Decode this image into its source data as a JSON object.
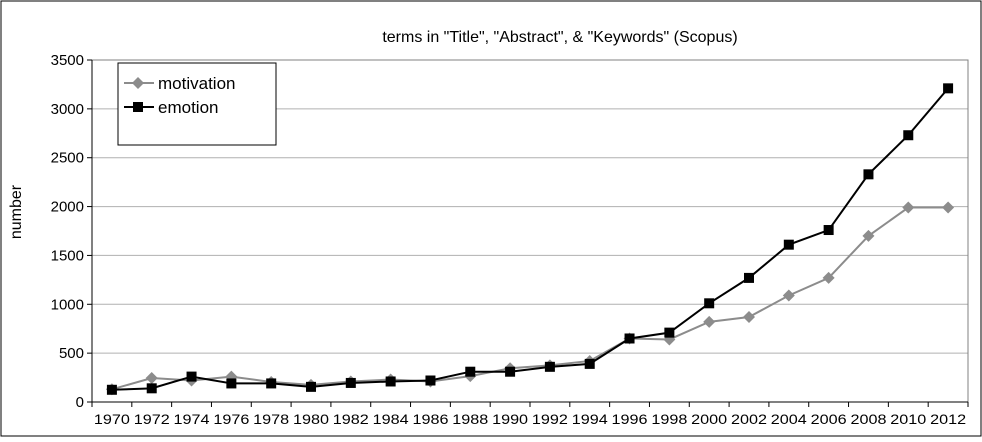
{
  "chart_data": {
    "type": "line",
    "title": "terms in \"Title\", \"Abstract\", & \"Keywords\" (Scopus)",
    "xlabel": "",
    "ylabel": "number",
    "ylim": [
      0,
      3500
    ],
    "yticks": [
      0,
      500,
      1000,
      1500,
      2000,
      2500,
      3000,
      3500
    ],
    "grid": true,
    "legend_position": "top-left",
    "categories": [
      "1970",
      "1972",
      "1974",
      "1976",
      "1978",
      "1980",
      "1982",
      "1984",
      "1986",
      "1988",
      "1990",
      "1992",
      "1994",
      "1996",
      "1998",
      "2000",
      "2002",
      "2004",
      "2006",
      "2008",
      "2010",
      "2012"
    ],
    "series": [
      {
        "name": "motivation",
        "color": "#8c8c8c",
        "marker": "diamond",
        "values": [
          130,
          245,
          220,
          260,
          205,
          175,
          210,
          230,
          210,
          265,
          345,
          375,
          420,
          650,
          640,
          820,
          870,
          1090,
          1270,
          1700,
          1990,
          1990
        ]
      },
      {
        "name": "emotion",
        "color": "#000000",
        "marker": "square",
        "values": [
          125,
          140,
          260,
          190,
          190,
          155,
          195,
          210,
          220,
          310,
          310,
          360,
          390,
          650,
          710,
          1010,
          1270,
          1610,
          1760,
          2330,
          2730,
          3210
        ]
      }
    ]
  }
}
